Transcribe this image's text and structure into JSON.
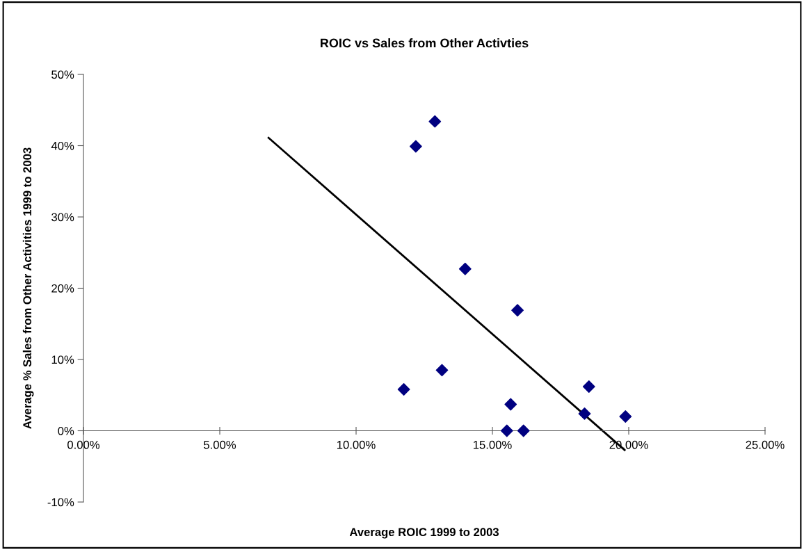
{
  "chart_data": {
    "type": "scatter",
    "title": "ROIC vs Sales from Other Activties",
    "xlabel": "Average ROIC 1999 to 2003",
    "ylabel": "Average % Sales from Other Activities 1999 to 2003",
    "xlim": [
      0,
      25
    ],
    "ylim": [
      -10,
      50
    ],
    "xticks": [
      {
        "value": 0,
        "label": "0.00%"
      },
      {
        "value": 5,
        "label": "5.00%"
      },
      {
        "value": 10,
        "label": "10.00%"
      },
      {
        "value": 15,
        "label": "15.00%"
      },
      {
        "value": 20,
        "label": "20.00%"
      },
      {
        "value": 25,
        "label": "25.00%"
      }
    ],
    "yticks": [
      {
        "value": -10,
        "label": "-10%"
      },
      {
        "value": 0,
        "label": "0%"
      },
      {
        "value": 10,
        "label": "10%"
      },
      {
        "value": 20,
        "label": "20%"
      },
      {
        "value": 30,
        "label": "30%"
      },
      {
        "value": 40,
        "label": "40%"
      },
      {
        "value": 50,
        "label": "50%"
      }
    ],
    "grid": false,
    "legend": false,
    "marker": "diamond",
    "series": [
      {
        "color": "#000080",
        "x": [
          11.75,
          13.15,
          15.92,
          15.67,
          15.53,
          16.14,
          18.54,
          18.38,
          19.88,
          12.89,
          12.19,
          14.0
        ],
        "values": [
          5.8,
          8.5,
          16.9,
          3.7,
          0,
          0,
          6.2,
          2.4,
          2.0,
          43.4,
          39.9,
          22.7
        ]
      },
      {
        "type": "line",
        "color": "#000000",
        "marker": "none",
        "line_style": "solid",
        "x": [
          6.79,
          19.85
        ],
        "values": [
          41.1,
          -2.7
        ]
      }
    ]
  }
}
